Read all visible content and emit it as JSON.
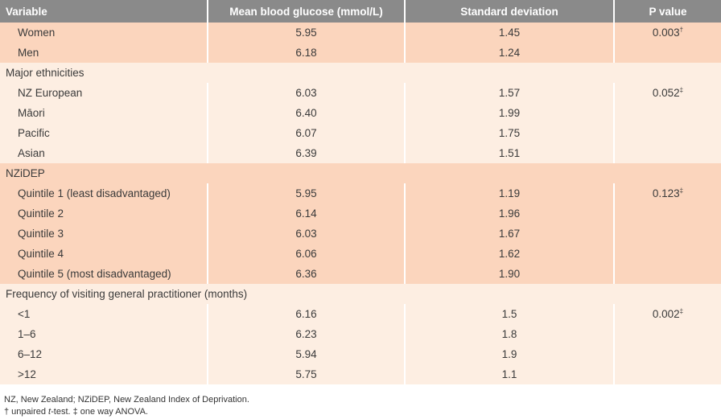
{
  "header": {
    "variable": "Variable",
    "mean": "Mean blood glucose (mmol/L)",
    "sd": "Standard deviation",
    "p": "P value"
  },
  "sex": {
    "rows": [
      {
        "label": "Women",
        "mean": "5.95",
        "sd": "1.45",
        "p": "0.003",
        "p_mark": "†"
      },
      {
        "label": "Men",
        "mean": "6.18",
        "sd": "1.24",
        "p": "",
        "p_mark": ""
      }
    ]
  },
  "ethnicity": {
    "heading": "Major ethnicities",
    "rows": [
      {
        "label": "NZ European",
        "mean": "6.03",
        "sd": "1.57",
        "p": "0.052",
        "p_mark": "‡"
      },
      {
        "label": "Māori",
        "mean": "6.40",
        "sd": "1.99",
        "p": "",
        "p_mark": ""
      },
      {
        "label": "Pacific",
        "mean": "6.07",
        "sd": "1.75",
        "p": "",
        "p_mark": ""
      },
      {
        "label": "Asian",
        "mean": "6.39",
        "sd": "1.51",
        "p": "",
        "p_mark": ""
      }
    ]
  },
  "nzidep": {
    "heading": "NZiDEP",
    "rows": [
      {
        "label": "Quintile 1 (least disadvantaged)",
        "mean": "5.95",
        "sd": "1.19",
        "p": "0.123",
        "p_mark": "‡"
      },
      {
        "label": "Quintile 2",
        "mean": "6.14",
        "sd": "1.96",
        "p": "",
        "p_mark": ""
      },
      {
        "label": "Quintile 3",
        "mean": "6.03",
        "sd": "1.67",
        "p": "",
        "p_mark": ""
      },
      {
        "label": "Quintile 4",
        "mean": "6.06",
        "sd": "1.62",
        "p": "",
        "p_mark": ""
      },
      {
        "label": "Quintile 5 (most disadvantaged)",
        "mean": "6.36",
        "sd": "1.90",
        "p": "",
        "p_mark": ""
      }
    ]
  },
  "gp": {
    "heading": "Frequency of visiting general practitioner (months)",
    "rows": [
      {
        "label": "<1",
        "mean": "6.16",
        "sd": "1.5",
        "p": "0.002",
        "p_mark": "‡"
      },
      {
        "label": "1–6",
        "mean": "6.23",
        "sd": "1.8",
        "p": "",
        "p_mark": ""
      },
      {
        "label": "6–12",
        "mean": "5.94",
        "sd": "1.9",
        "p": "",
        "p_mark": ""
      },
      {
        "label": ">12",
        "mean": "5.75",
        "sd": "1.1",
        "p": "",
        "p_mark": ""
      }
    ]
  },
  "footnotes": {
    "line1": "NZ, New Zealand; NZiDEP, New Zealand Index of Deprivation.",
    "line2_prefix": "† unpaired ",
    "line2_italic": "t",
    "line2_suffix": "-test. ‡ one way ANOVA."
  },
  "colors": {
    "header_bg": "#8a8a8a",
    "shade_dark": "#fbd5bd",
    "shade_light": "#fdeee2"
  }
}
